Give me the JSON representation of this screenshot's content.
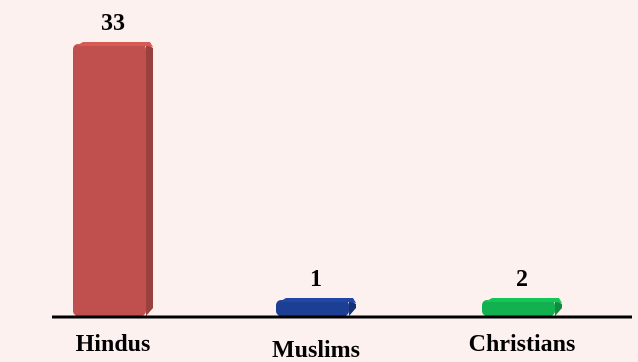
{
  "chart_data": {
    "type": "bar",
    "title": "",
    "xlabel": "",
    "ylabel": "",
    "categories": [
      "Hindus",
      "Muslims",
      "Christians"
    ],
    "values": [
      33,
      1,
      2
    ],
    "data_labels": [
      "33",
      "1",
      "2"
    ],
    "colors": [
      "#c0504d",
      "#1c3f94",
      "#12b04e"
    ],
    "ylim": [
      0,
      33
    ],
    "grid": false,
    "legend": "none"
  }
}
